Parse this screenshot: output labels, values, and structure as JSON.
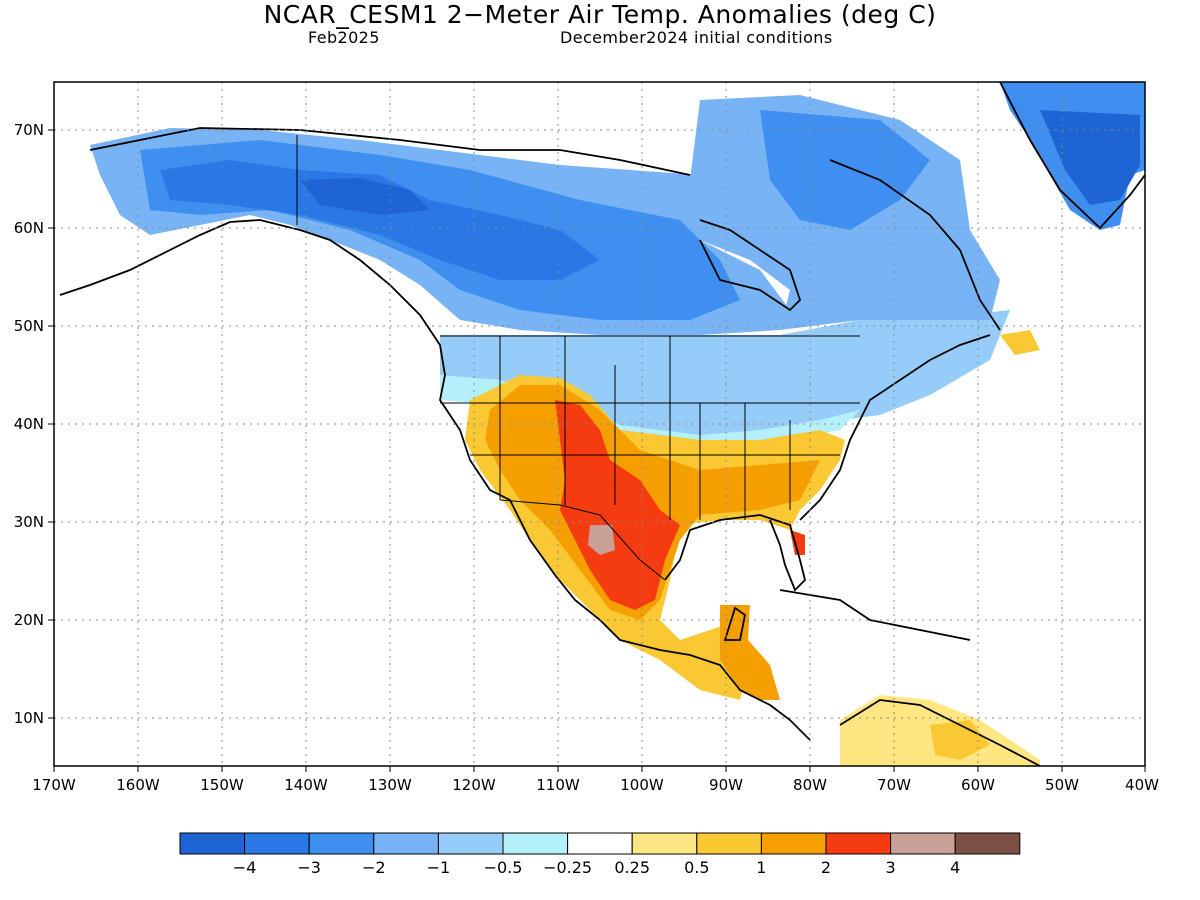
{
  "title": "NCAR_CESM1 2−Meter Air Temp. Anomalies (deg C)",
  "subtitle_left": "Feb2025",
  "subtitle_right": "December2024 initial conditions",
  "chart_data": {
    "type": "heatmap",
    "lon_range": [
      -170,
      -40
    ],
    "lat_range": [
      5,
      75
    ],
    "lon_ticks": [
      "170W",
      "160W",
      "150W",
      "140W",
      "130W",
      "120W",
      "110W",
      "100W",
      "90W",
      "80W",
      "70W",
      "60W",
      "50W",
      "40W"
    ],
    "lat_ticks": [
      "10N",
      "20N",
      "30N",
      "40N",
      "50N",
      "60N",
      "70N"
    ],
    "grid": "dotted",
    "colorbar": {
      "colors": [
        "#1e64d2",
        "#2a78e6",
        "#3f8ff0",
        "#78b4f5",
        "#96cdf8",
        "#b4f0fa",
        "#ffffff",
        "#ffe682",
        "#fac832",
        "#f5a000",
        "#f53c10",
        "#c8a096",
        "#7d5046"
      ],
      "labels": [
        "−4",
        "−3",
        "−2",
        "−1",
        "−0.5",
        "−0.25",
        "0.25",
        "0.5",
        "1",
        "2",
        "3",
        "4"
      ]
    },
    "regions": [
      {
        "name": "alaska-yukon",
        "anomaly_bin": -3
      },
      {
        "name": "central-canada",
        "anomaly_bin": -3
      },
      {
        "name": "eastern-canada",
        "anomaly_bin": -1
      },
      {
        "name": "greenland",
        "anomaly_bin": -3
      },
      {
        "name": "northern-us",
        "anomaly_bin": -0.5
      },
      {
        "name": "southwest-us",
        "anomaly_bin": 1
      },
      {
        "name": "texas-mexico",
        "anomaly_bin": 2
      },
      {
        "name": "southeast-us",
        "anomaly_bin": 1
      },
      {
        "name": "central-america",
        "anomaly_bin": 1
      },
      {
        "name": "northern-south-america",
        "anomaly_bin": 0.25
      }
    ]
  }
}
